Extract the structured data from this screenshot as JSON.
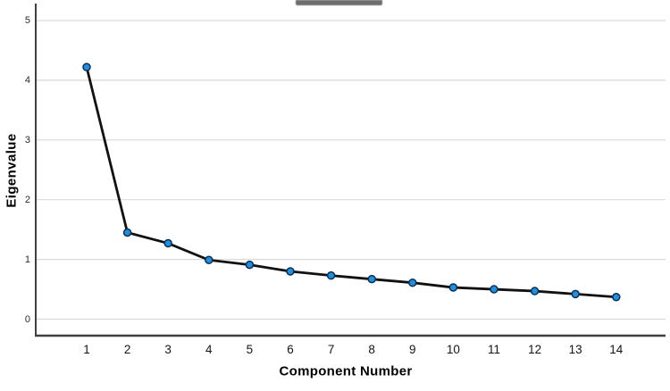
{
  "chart_data": {
    "type": "line",
    "title": "",
    "xlabel": "Component Number",
    "ylabel": "Eigenvalue",
    "categories": [
      "1",
      "2",
      "3",
      "4",
      "5",
      "6",
      "7",
      "8",
      "9",
      "10",
      "11",
      "12",
      "13",
      "14"
    ],
    "values": [
      4.22,
      1.45,
      1.27,
      0.99,
      0.91,
      0.8,
      0.73,
      0.67,
      0.61,
      0.53,
      0.5,
      0.47,
      0.42,
      0.37
    ],
    "yticks": [
      "0",
      "1",
      "2",
      "3",
      "4",
      "5"
    ],
    "ylim": [
      0,
      5
    ],
    "grid": "horizontal",
    "legend": "none",
    "colors": {
      "line": "#111111",
      "marker_fill": "#1f8fe0",
      "marker_stroke": "#0a2f55",
      "gridline": "#d9d9d9",
      "axis": "#3f3f3f",
      "tick_text": "#2b2b2b",
      "axis_title_text": "#000000",
      "background": "#ffffff"
    }
  }
}
